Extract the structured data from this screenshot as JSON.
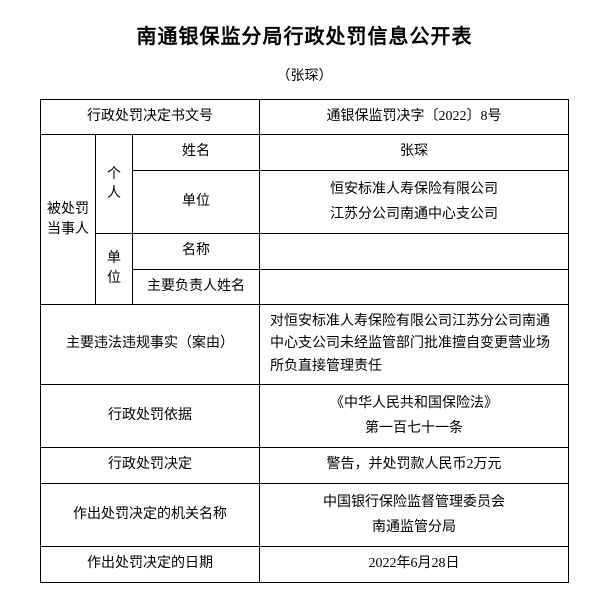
{
  "title": "南通银保监分局行政处罚信息公开表",
  "subtitle": "（张琛）",
  "rows": {
    "doc_number_label": "行政处罚决定书文号",
    "doc_number_value": "通银保监罚决字〔2022〕8号",
    "party_label": "被处罚当事人",
    "individual_label": "个人",
    "name_label": "姓名",
    "name_value": "张琛",
    "unit_label_ind": "单位",
    "unit_value_line1": "恒安标准人寿保险有限公司",
    "unit_value_line2": "江苏分公司南通中心支公司",
    "org_label": "单位",
    "org_name_label": "名称",
    "org_name_value": "",
    "org_person_label": "主要负责人姓名",
    "org_person_value": "",
    "fact_label": "主要违法违规事实（案由）",
    "fact_value": "对恒安标准人寿保险有限公司江苏分公司南通中心支公司未经监管部门批准擅自变更营业场所负直接管理责任",
    "basis_label": "行政处罚依据",
    "basis_value_line1": "《中华人民共和国保险法》",
    "basis_value_line2": "第一百七十一条",
    "decision_label": "行政处罚决定",
    "decision_value": "警告，并处罚款人民币2万元",
    "authority_label": "作出处罚决定的机关名称",
    "authority_value_line1": "中国银行保险监督管理委员会",
    "authority_value_line2": "南通监管分局",
    "date_label": "作出处罚决定的日期",
    "date_value": "2022年6月28日"
  },
  "colors": {
    "text": "#000000",
    "border": "#000000",
    "background": "#ffffff"
  }
}
